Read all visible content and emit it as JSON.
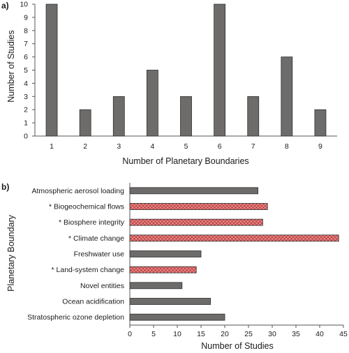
{
  "chart_data": [
    {
      "type": "bar",
      "panel_label": "a)",
      "xlabel": "Number of Planetary Boundaries",
      "ylabel": "Number of Studies",
      "categories": [
        "1",
        "2",
        "3",
        "4",
        "5",
        "6",
        "7",
        "8",
        "9"
      ],
      "values": [
        10,
        2,
        3,
        5,
        3,
        10,
        3,
        6,
        2
      ],
      "ylim": [
        0,
        10
      ],
      "yticks": [
        0,
        1,
        2,
        3,
        4,
        5,
        6,
        7,
        8,
        9,
        10
      ],
      "grid": false,
      "bar_color": "#6e6b6b"
    },
    {
      "type": "bar",
      "orientation": "horizontal",
      "panel_label": "b)",
      "xlabel": "Number of Studies",
      "ylabel": "Planetary Boundary",
      "categories": [
        "Atmospheric aerosol loading",
        "* Biogeochemical flows",
        "* Biosphere integrity",
        "* Climate change",
        "Freshwater use",
        "* Land-system change",
        "Novel entities",
        "Ocean acidification",
        "Stratospheric ozone depletion"
      ],
      "values": [
        27,
        29,
        28,
        44,
        15,
        14,
        11,
        17,
        20
      ],
      "highlighted": [
        false,
        true,
        true,
        true,
        false,
        true,
        false,
        false,
        false
      ],
      "xlim": [
        0,
        45
      ],
      "xticks": [
        0,
        5,
        10,
        15,
        20,
        25,
        30,
        35,
        40,
        45
      ],
      "grid": false,
      "bar_color": "#6e6b6b",
      "highlight_color": "#f08080"
    }
  ]
}
